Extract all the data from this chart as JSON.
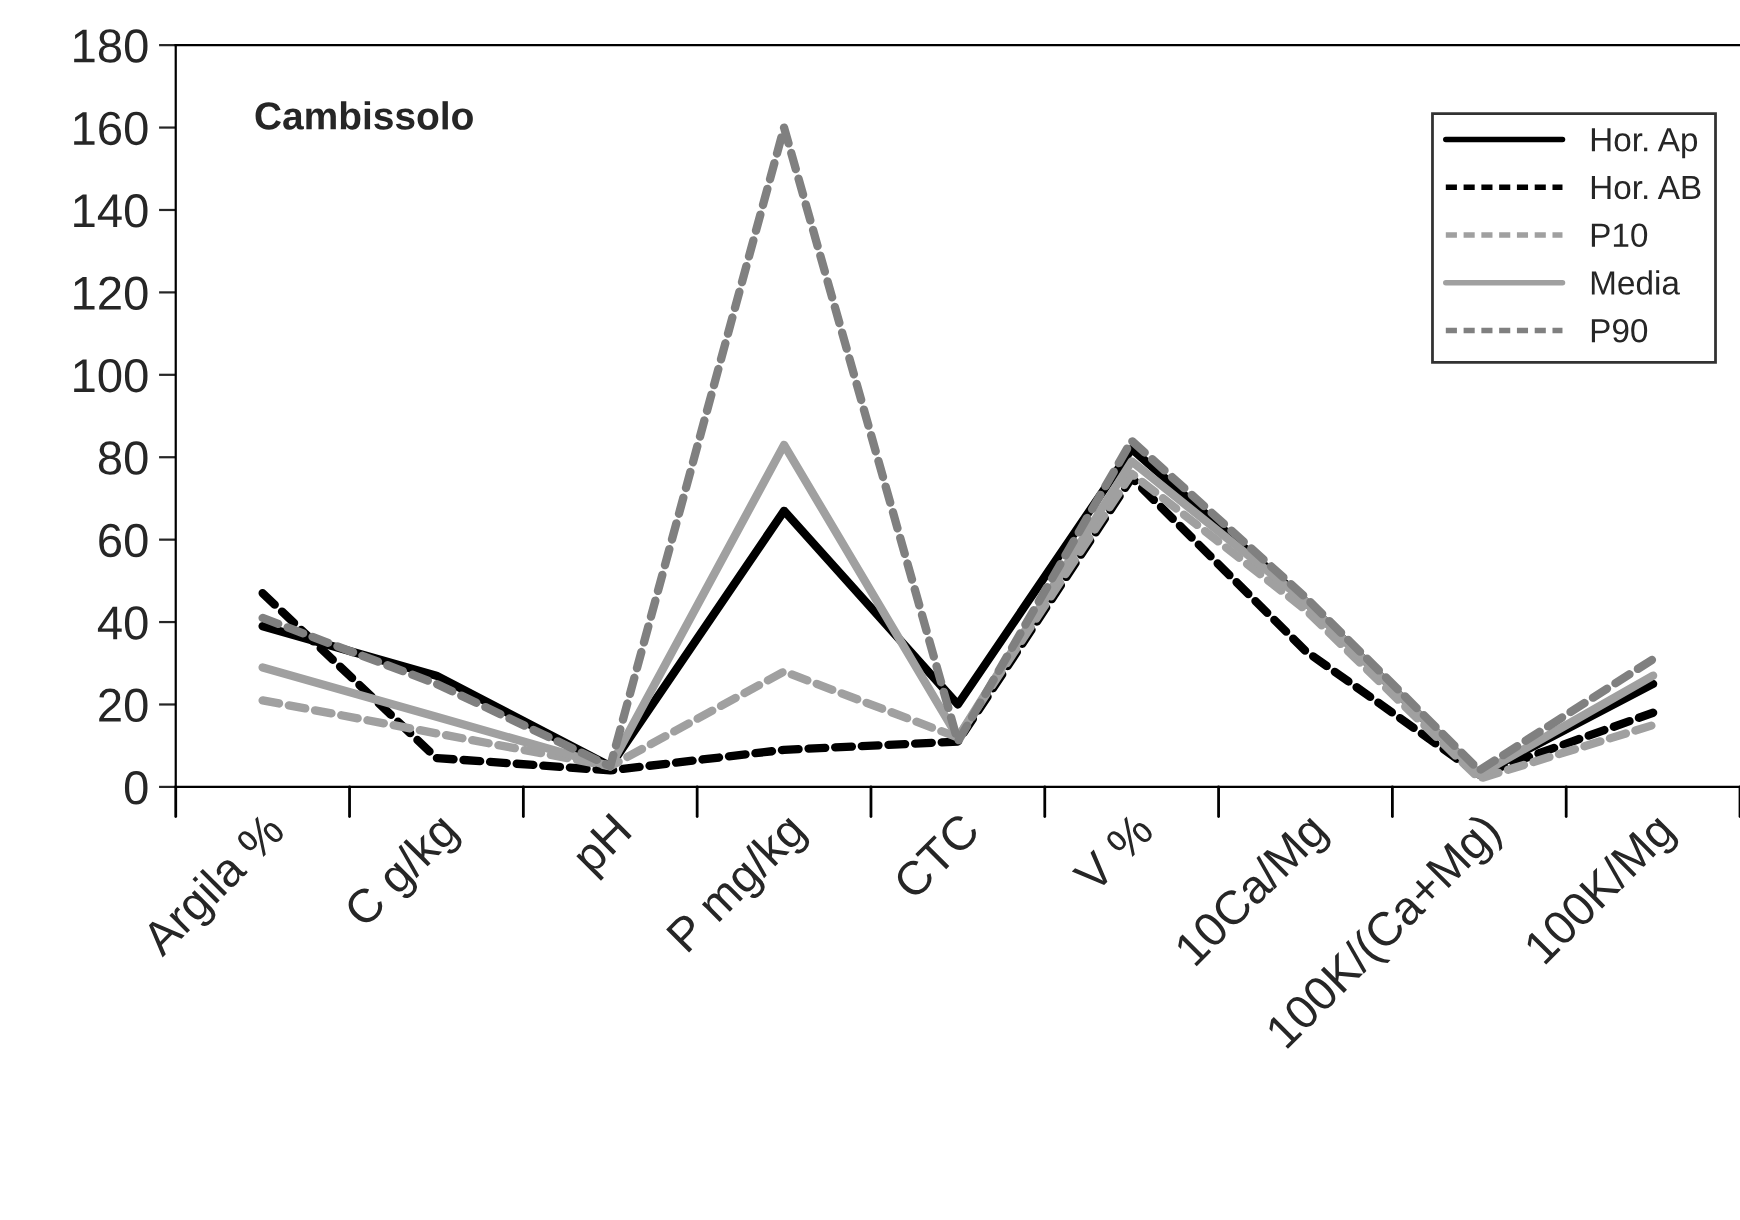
{
  "chart_data": {
    "type": "line",
    "title": "Cambissolo",
    "categories": [
      "Argila %",
      "C g/kg",
      "pH",
      "P mg/kg",
      "CTC",
      "V %",
      "10Ca/Mg",
      "100K/(Ca+Mg)",
      "100K/Mg"
    ],
    "series": [
      {
        "name": "Hor. Ap",
        "color": "#000000",
        "line_style": "solid",
        "values": [
          39,
          27,
          5,
          67,
          20,
          82,
          45,
          3,
          25
        ]
      },
      {
        "name": "Hor. AB",
        "color": "#000000",
        "line_style": "dashed",
        "values": [
          47,
          7,
          4,
          9,
          11,
          75,
          33,
          3,
          18
        ]
      },
      {
        "name": "P10",
        "color": "#a0a0a0",
        "line_style": "dashed",
        "values": [
          21,
          13,
          5,
          28,
          12,
          76,
          43,
          2,
          15
        ]
      },
      {
        "name": "Media",
        "color": "#a0a0a0",
        "line_style": "solid",
        "values": [
          29,
          17,
          5,
          83,
          12,
          79,
          45,
          3,
          27
        ]
      },
      {
        "name": "P90",
        "color": "#808080",
        "line_style": "dashed",
        "values": [
          41,
          25,
          5,
          160,
          11,
          84,
          46,
          4,
          31
        ]
      }
    ],
    "ylim": [
      0,
      180
    ],
    "yticks": [
      0,
      20,
      40,
      60,
      80,
      100,
      120,
      140,
      160,
      180
    ],
    "grid": false,
    "legend": "top right",
    "marker": "none"
  }
}
